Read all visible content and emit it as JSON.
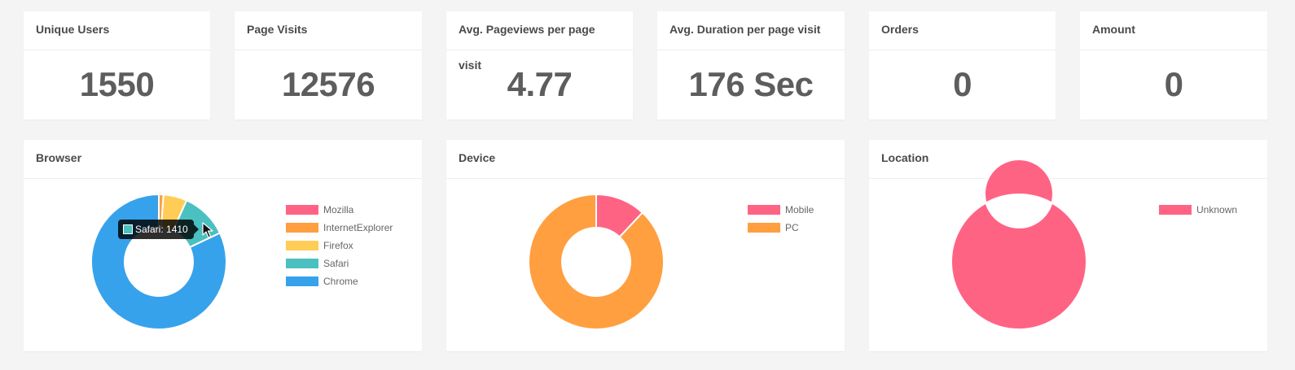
{
  "stats": [
    {
      "label": "Unique Users",
      "value": "1550"
    },
    {
      "label": "Page Visits",
      "value": "12576"
    },
    {
      "label": "Avg. Pageviews per page visit",
      "value": "4.77"
    },
    {
      "label": "Avg. Duration per page visit",
      "value": "176 Sec"
    },
    {
      "label": "Orders",
      "value": "0"
    },
    {
      "label": "Amount",
      "value": "0"
    }
  ],
  "charts": {
    "browser": {
      "title": "Browser"
    },
    "device": {
      "title": "Device"
    },
    "location": {
      "title": "Location"
    }
  },
  "tooltip": {
    "text": "Safari: 1410",
    "color": "#4bc0c0"
  },
  "chart_data": [
    {
      "type": "pie",
      "title": "Browser",
      "categories": [
        "Mozilla",
        "InternetExplorer",
        "Firefox",
        "Safari",
        "Chrome"
      ],
      "values": [
        0,
        140,
        710,
        1410,
        10316
      ],
      "colors": [
        "#ff6384",
        "#ff9f40",
        "#ffcd56",
        "#4bc0c0",
        "#36a2eb"
      ],
      "legend": "right"
    },
    {
      "type": "pie",
      "title": "Device",
      "categories": [
        "Mobile",
        "PC"
      ],
      "values": [
        12,
        88
      ],
      "colors": [
        "#ff6384",
        "#ff9f40"
      ],
      "legend": "right"
    },
    {
      "type": "pie",
      "title": "Location",
      "categories": [
        "Unknown"
      ],
      "values": [
        100
      ],
      "colors": [
        "#ff6384"
      ],
      "legend": "right"
    }
  ]
}
